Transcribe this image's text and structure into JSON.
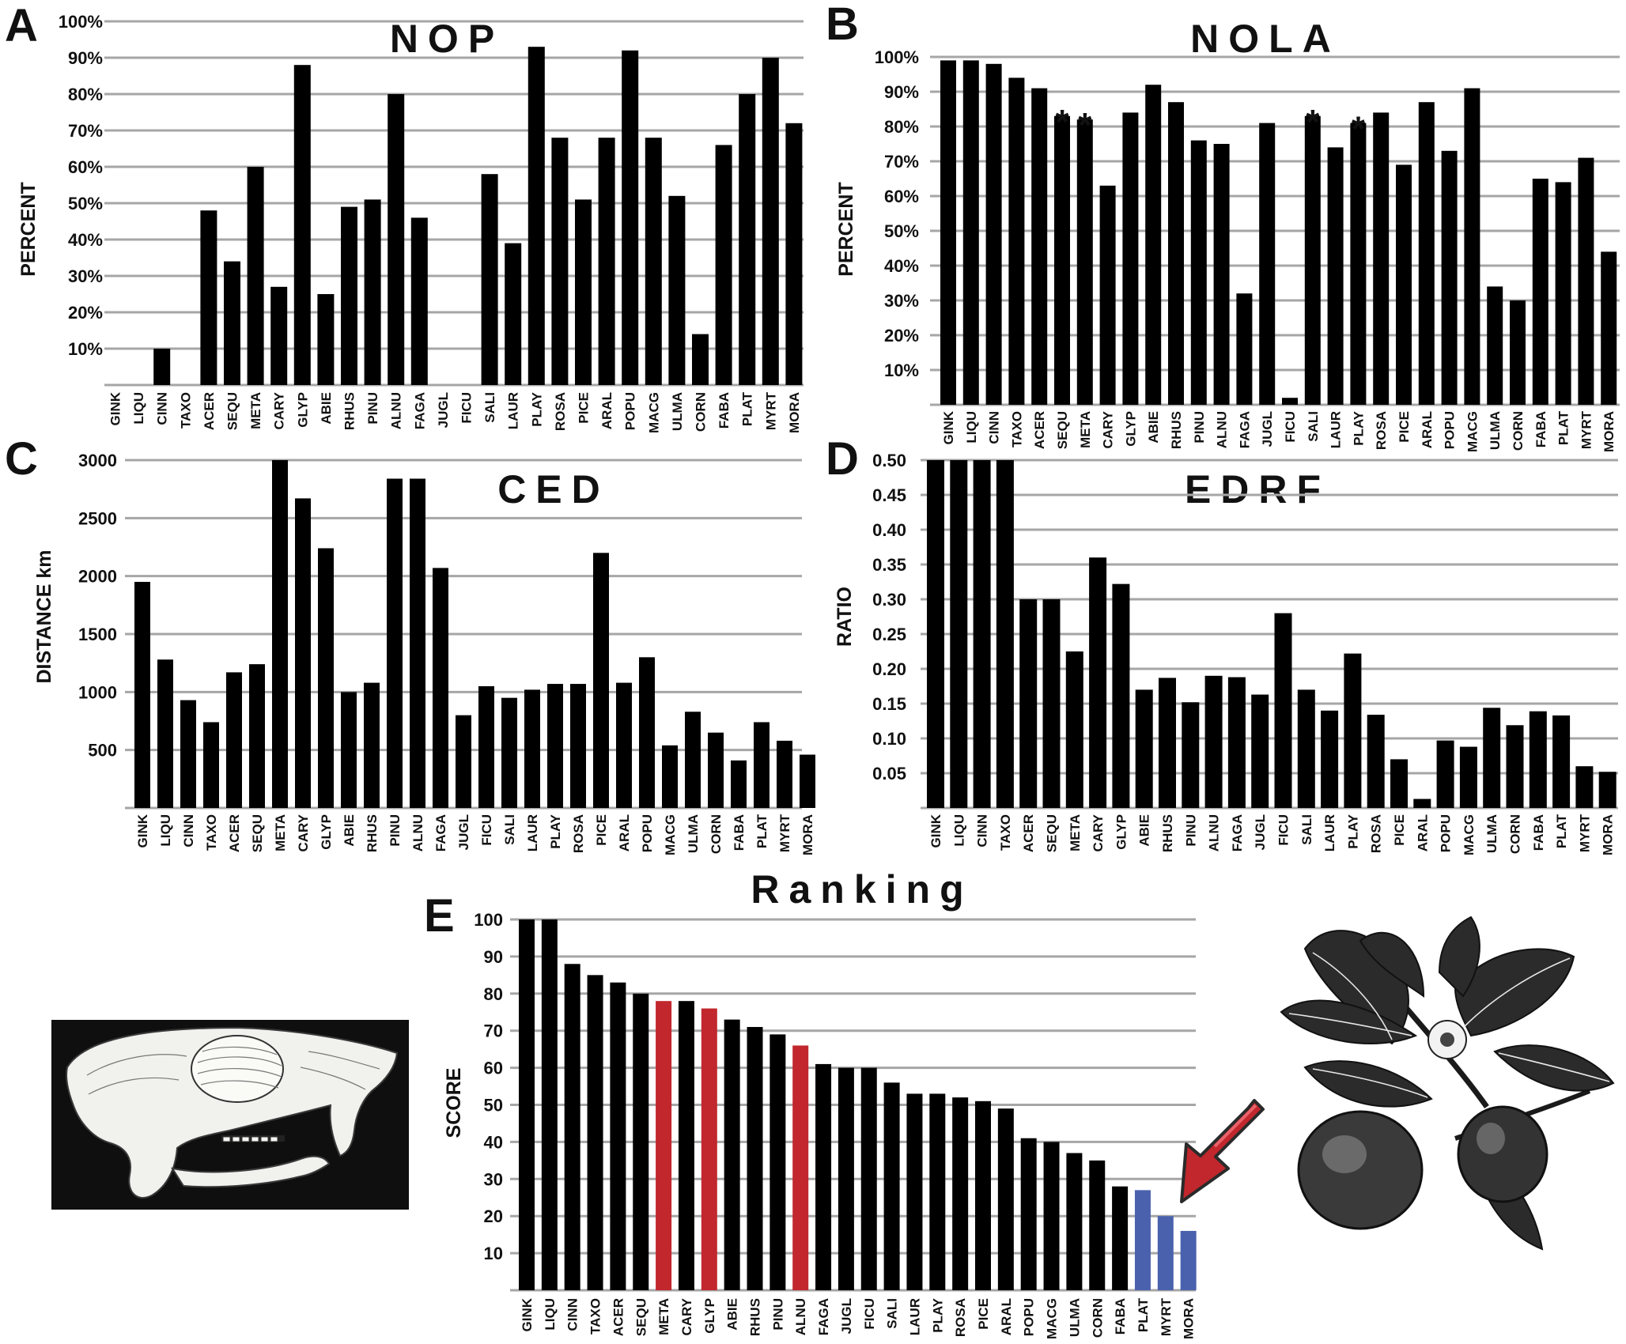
{
  "colors": {
    "bar": "#000000",
    "grid": "#a6a6a6",
    "highlight_red": "#c1272d",
    "highlight_blue": "#4a62ad"
  },
  "chart_data": [
    {
      "id": "A",
      "panel": "A",
      "type": "bar",
      "title": "NOP",
      "ylabel": "PERCENT",
      "ylim": [
        0,
        100
      ],
      "yticks": [
        10,
        20,
        30,
        40,
        50,
        60,
        70,
        80,
        90,
        100
      ],
      "ytick_labels": [
        "10%",
        "20%",
        "30%",
        "40%",
        "50%",
        "60%",
        "70%",
        "80%",
        "90%",
        "100%"
      ],
      "categories": [
        "GINK",
        "LIQU",
        "CINN",
        "TAXO",
        "ACER",
        "SEQU",
        "META",
        "CARY",
        "GLYP",
        "ABIE",
        "RHUS",
        "PINU",
        "ALNU",
        "FAGA",
        "JUGL",
        "FICU",
        "SALI",
        "LAUR",
        "PLAY",
        "ROSA",
        "PICE",
        "ARAL",
        "POPU",
        "MACG",
        "ULMA",
        "CORN",
        "FABA",
        "PLAT",
        "MYRT",
        "MORA"
      ],
      "values": [
        0,
        0,
        10,
        0,
        48,
        34,
        60,
        27,
        88,
        25,
        49,
        51,
        80,
        46,
        0,
        0,
        58,
        39,
        93,
        68,
        51,
        68,
        92,
        68,
        52,
        14,
        66,
        80,
        90,
        72
      ]
    },
    {
      "id": "B",
      "panel": "B",
      "type": "bar",
      "title": "NOLA",
      "ylabel": "PERCENT",
      "ylim": [
        0,
        100
      ],
      "yticks": [
        10,
        20,
        30,
        40,
        50,
        60,
        70,
        80,
        90,
        100
      ],
      "ytick_labels": [
        "10%",
        "20%",
        "30%",
        "40%",
        "50%",
        "60%",
        "70%",
        "80%",
        "90%",
        "100%"
      ],
      "categories": [
        "GINK",
        "LIQU",
        "CINN",
        "TAXO",
        "ACER",
        "SEQU",
        "META",
        "CARY",
        "GLYP",
        "ABIE",
        "RHUS",
        "PINU",
        "ALNU",
        "FAGA",
        "JUGL",
        "FICU",
        "SALI",
        "LAUR",
        "PLAY",
        "ROSA",
        "PICE",
        "ARAL",
        "POPU",
        "MACG",
        "ULMA",
        "CORN",
        "FABA",
        "PLAT",
        "MYRT",
        "MORA"
      ],
      "values": [
        99,
        99,
        98,
        94,
        91,
        83,
        82,
        63,
        84,
        92,
        87,
        76,
        75,
        32,
        81,
        2,
        83,
        74,
        81,
        84,
        69,
        87,
        73,
        91,
        34,
        30,
        65,
        64,
        71,
        44
      ],
      "annotations": [
        {
          "category": "SEQU",
          "text": "*"
        },
        {
          "category": "META",
          "text": "*"
        },
        {
          "category": "SALI",
          "text": "*"
        },
        {
          "category": "PLAY",
          "text": "*"
        }
      ]
    },
    {
      "id": "C",
      "panel": "C",
      "type": "bar",
      "title": "CED",
      "ylabel": "DISTANCE km",
      "ylim": [
        0,
        3000
      ],
      "yticks": [
        500,
        1000,
        1500,
        2000,
        2500,
        3000
      ],
      "ytick_labels": [
        "500",
        "1000",
        "1500",
        "2000",
        "2500",
        "3000"
      ],
      "categories": [
        "GINK",
        "LIQU",
        "CINN",
        "TAXO",
        "ACER",
        "SEQU",
        "META",
        "CARY",
        "GLYP",
        "ABIE",
        "RHUS",
        "PINU",
        "ALNU",
        "FAGA",
        "JUGL",
        "FICU",
        "SALI",
        "LAUR",
        "PLAY",
        "ROSA",
        "PICE",
        "ARAL",
        "POPU",
        "MACG",
        "ULMA",
        "CORN",
        "FABA",
        "PLAT",
        "MYRT",
        "MORA"
      ],
      "values": [
        1950,
        1280,
        930,
        740,
        1170,
        1240,
        3010,
        2670,
        2240,
        1000,
        1080,
        2840,
        2840,
        2070,
        800,
        1050,
        950,
        1020,
        1070,
        1070,
        2200,
        1080,
        1300,
        540,
        830,
        650,
        410,
        740,
        580,
        460
      ]
    },
    {
      "id": "D",
      "panel": "D",
      "type": "bar",
      "title": "EDRF",
      "ylabel": "RATIO",
      "ylim": [
        0,
        0.5
      ],
      "yticks": [
        0.05,
        0.1,
        0.15,
        0.2,
        0.25,
        0.3,
        0.35,
        0.4,
        0.45,
        0.5
      ],
      "ytick_labels": [
        "0.05",
        "0.10",
        "0.15",
        "0.20",
        "0.25",
        "0.30",
        "0.35",
        "0.40",
        "0.45",
        "0.50"
      ],
      "categories": [
        "GINK",
        "LIQU",
        "CINN",
        "TAXO",
        "ACER",
        "SEQU",
        "META",
        "CARY",
        "GLYP",
        "ABIE",
        "RHUS",
        "PINU",
        "ALNU",
        "FAGA",
        "JUGL",
        "FICU",
        "SALI",
        "LAUR",
        "PLAY",
        "ROSA",
        "PICE",
        "ARAL",
        "POPU",
        "MACG",
        "ULMA",
        "CORN",
        "FABA",
        "PLAT",
        "MYRT",
        "MORA"
      ],
      "values": [
        0.5,
        0.5,
        0.5,
        0.5,
        0.3,
        0.3,
        0.225,
        0.36,
        0.322,
        0.17,
        0.187,
        0.152,
        0.19,
        0.188,
        0.163,
        0.28,
        0.17,
        0.14,
        0.222,
        0.134,
        0.07,
        0.013,
        0.097,
        0.088,
        0.144,
        0.119,
        0.139,
        0.133,
        0.06,
        0.052
      ]
    },
    {
      "id": "E",
      "panel": "E",
      "type": "bar",
      "title": "Ranking",
      "ylabel": "SCORE",
      "ylim": [
        0,
        100
      ],
      "yticks": [
        10,
        20,
        30,
        40,
        50,
        60,
        70,
        80,
        90,
        100
      ],
      "ytick_labels": [
        "10",
        "20",
        "30",
        "40",
        "50",
        "60",
        "70",
        "80",
        "90",
        "100"
      ],
      "categories": [
        "GINK",
        "LIQU",
        "CINN",
        "TAXO",
        "ACER",
        "SEQU",
        "META",
        "CARY",
        "GLYP",
        "ABIE",
        "RHUS",
        "PINU",
        "ALNU",
        "FAGA",
        "JUGL",
        "FICU",
        "SALI",
        "LAUR",
        "PLAY",
        "ROSA",
        "PICE",
        "ARAL",
        "POPU",
        "MACG",
        "ULMA",
        "CORN",
        "FABA",
        "PLAT",
        "MYRT",
        "MORA"
      ],
      "values": [
        100,
        100,
        88,
        85,
        83,
        80,
        78,
        78,
        76,
        73,
        71,
        69,
        66,
        61,
        60,
        60,
        56,
        53,
        53,
        52,
        51,
        49,
        41,
        40,
        37,
        35,
        28,
        27,
        20,
        16
      ],
      "bar_colors": [
        "black",
        "black",
        "black",
        "black",
        "black",
        "black",
        "red",
        "black",
        "red",
        "black",
        "black",
        "black",
        "red",
        "black",
        "black",
        "black",
        "black",
        "black",
        "black",
        "black",
        "black",
        "black",
        "black",
        "black",
        "black",
        "black",
        "black",
        "blue",
        "blue",
        "blue"
      ]
    }
  ],
  "illustrations": [
    {
      "name": "skull-illustration",
      "description": "rodent skull engraving"
    },
    {
      "name": "guava-illustration",
      "description": "guava branch engraving"
    }
  ]
}
